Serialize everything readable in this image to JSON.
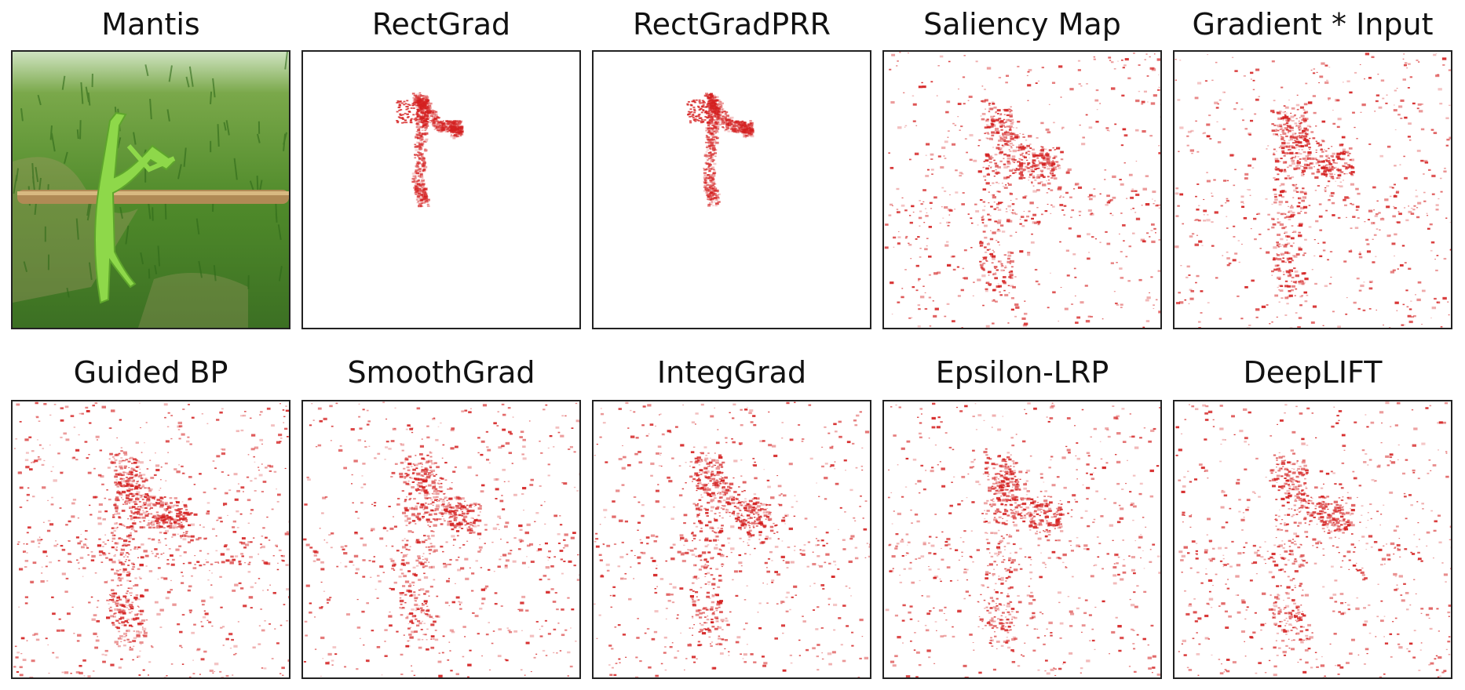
{
  "panels": [
    {
      "title": "Mantis",
      "kind": "photo"
    },
    {
      "title": "RectGrad",
      "kind": "compact"
    },
    {
      "title": "RectGradPRR",
      "kind": "compact"
    },
    {
      "title": "Saliency Map",
      "kind": "scatter"
    },
    {
      "title": "Gradient * Input",
      "kind": "scatter"
    },
    {
      "title": "Guided BP",
      "kind": "scatter"
    },
    {
      "title": "SmoothGrad",
      "kind": "scatter"
    },
    {
      "title": "IntegGrad",
      "kind": "scatter"
    },
    {
      "title": "Epsilon-LRP",
      "kind": "scatter"
    },
    {
      "title": "DeepLIFT",
      "kind": "scatter"
    }
  ],
  "colors": {
    "attribution": "#d42020",
    "frame": "#222222",
    "photo_sky": "#cfe3c0",
    "photo_grass": "#4f8a2a",
    "mantis": "#8ed84a",
    "branch": "#b08a55"
  }
}
